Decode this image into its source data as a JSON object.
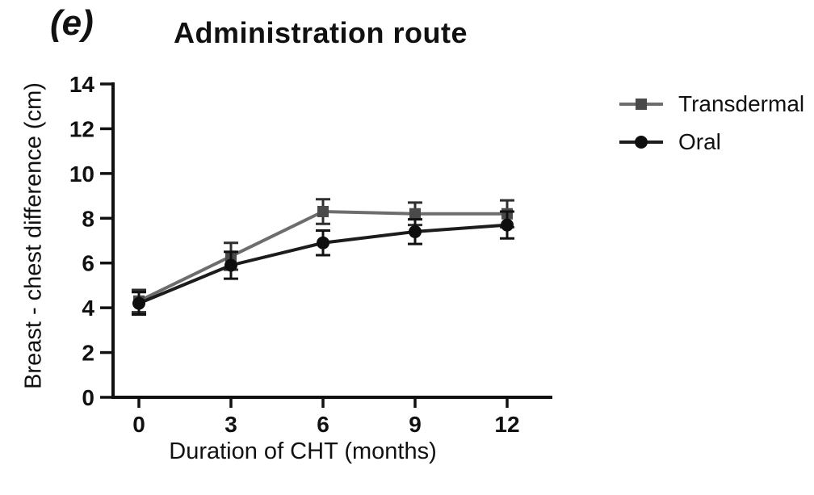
{
  "panel_label": "(e)",
  "chart_data": {
    "type": "line",
    "title": "Administration route",
    "xlabel": "Duration of CHT (months)",
    "ylabel": "Breast - chest difference (cm)",
    "x": [
      0,
      3,
      6,
      9,
      12
    ],
    "xticks": [
      0,
      3,
      6,
      9,
      12
    ],
    "yticks": [
      0,
      2,
      4,
      6,
      8,
      10,
      12,
      14
    ],
    "xlim": [
      0,
      12
    ],
    "ylim": [
      0,
      14
    ],
    "grid": false,
    "legend_position": "right",
    "series": [
      {
        "name": "Transdermal",
        "marker": "square",
        "line_color": "#6d6d6d",
        "marker_color": "#4a4a4a",
        "error_color": "#2f2f2f",
        "values": [
          4.3,
          6.3,
          8.3,
          8.2,
          8.2
        ],
        "errors": [
          0.5,
          0.6,
          0.55,
          0.5,
          0.6
        ]
      },
      {
        "name": "Oral",
        "marker": "circle",
        "line_color": "#1c1c1c",
        "marker_color": "#0e0e0e",
        "error_color": "#111111",
        "values": [
          4.2,
          5.9,
          6.9,
          7.4,
          7.7
        ],
        "errors": [
          0.5,
          0.6,
          0.55,
          0.55,
          0.6
        ]
      }
    ]
  },
  "legend": {
    "items": [
      {
        "label": "Transdermal",
        "marker": "square",
        "line_color": "#6d6d6d",
        "marker_color": "#4a4a4a"
      },
      {
        "label": "Oral",
        "marker": "circle",
        "line_color": "#1c1c1c",
        "marker_color": "#0e0e0e"
      }
    ]
  },
  "colors": {
    "text": "#111111",
    "axis": "#111111",
    "background": "#ffffff"
  }
}
